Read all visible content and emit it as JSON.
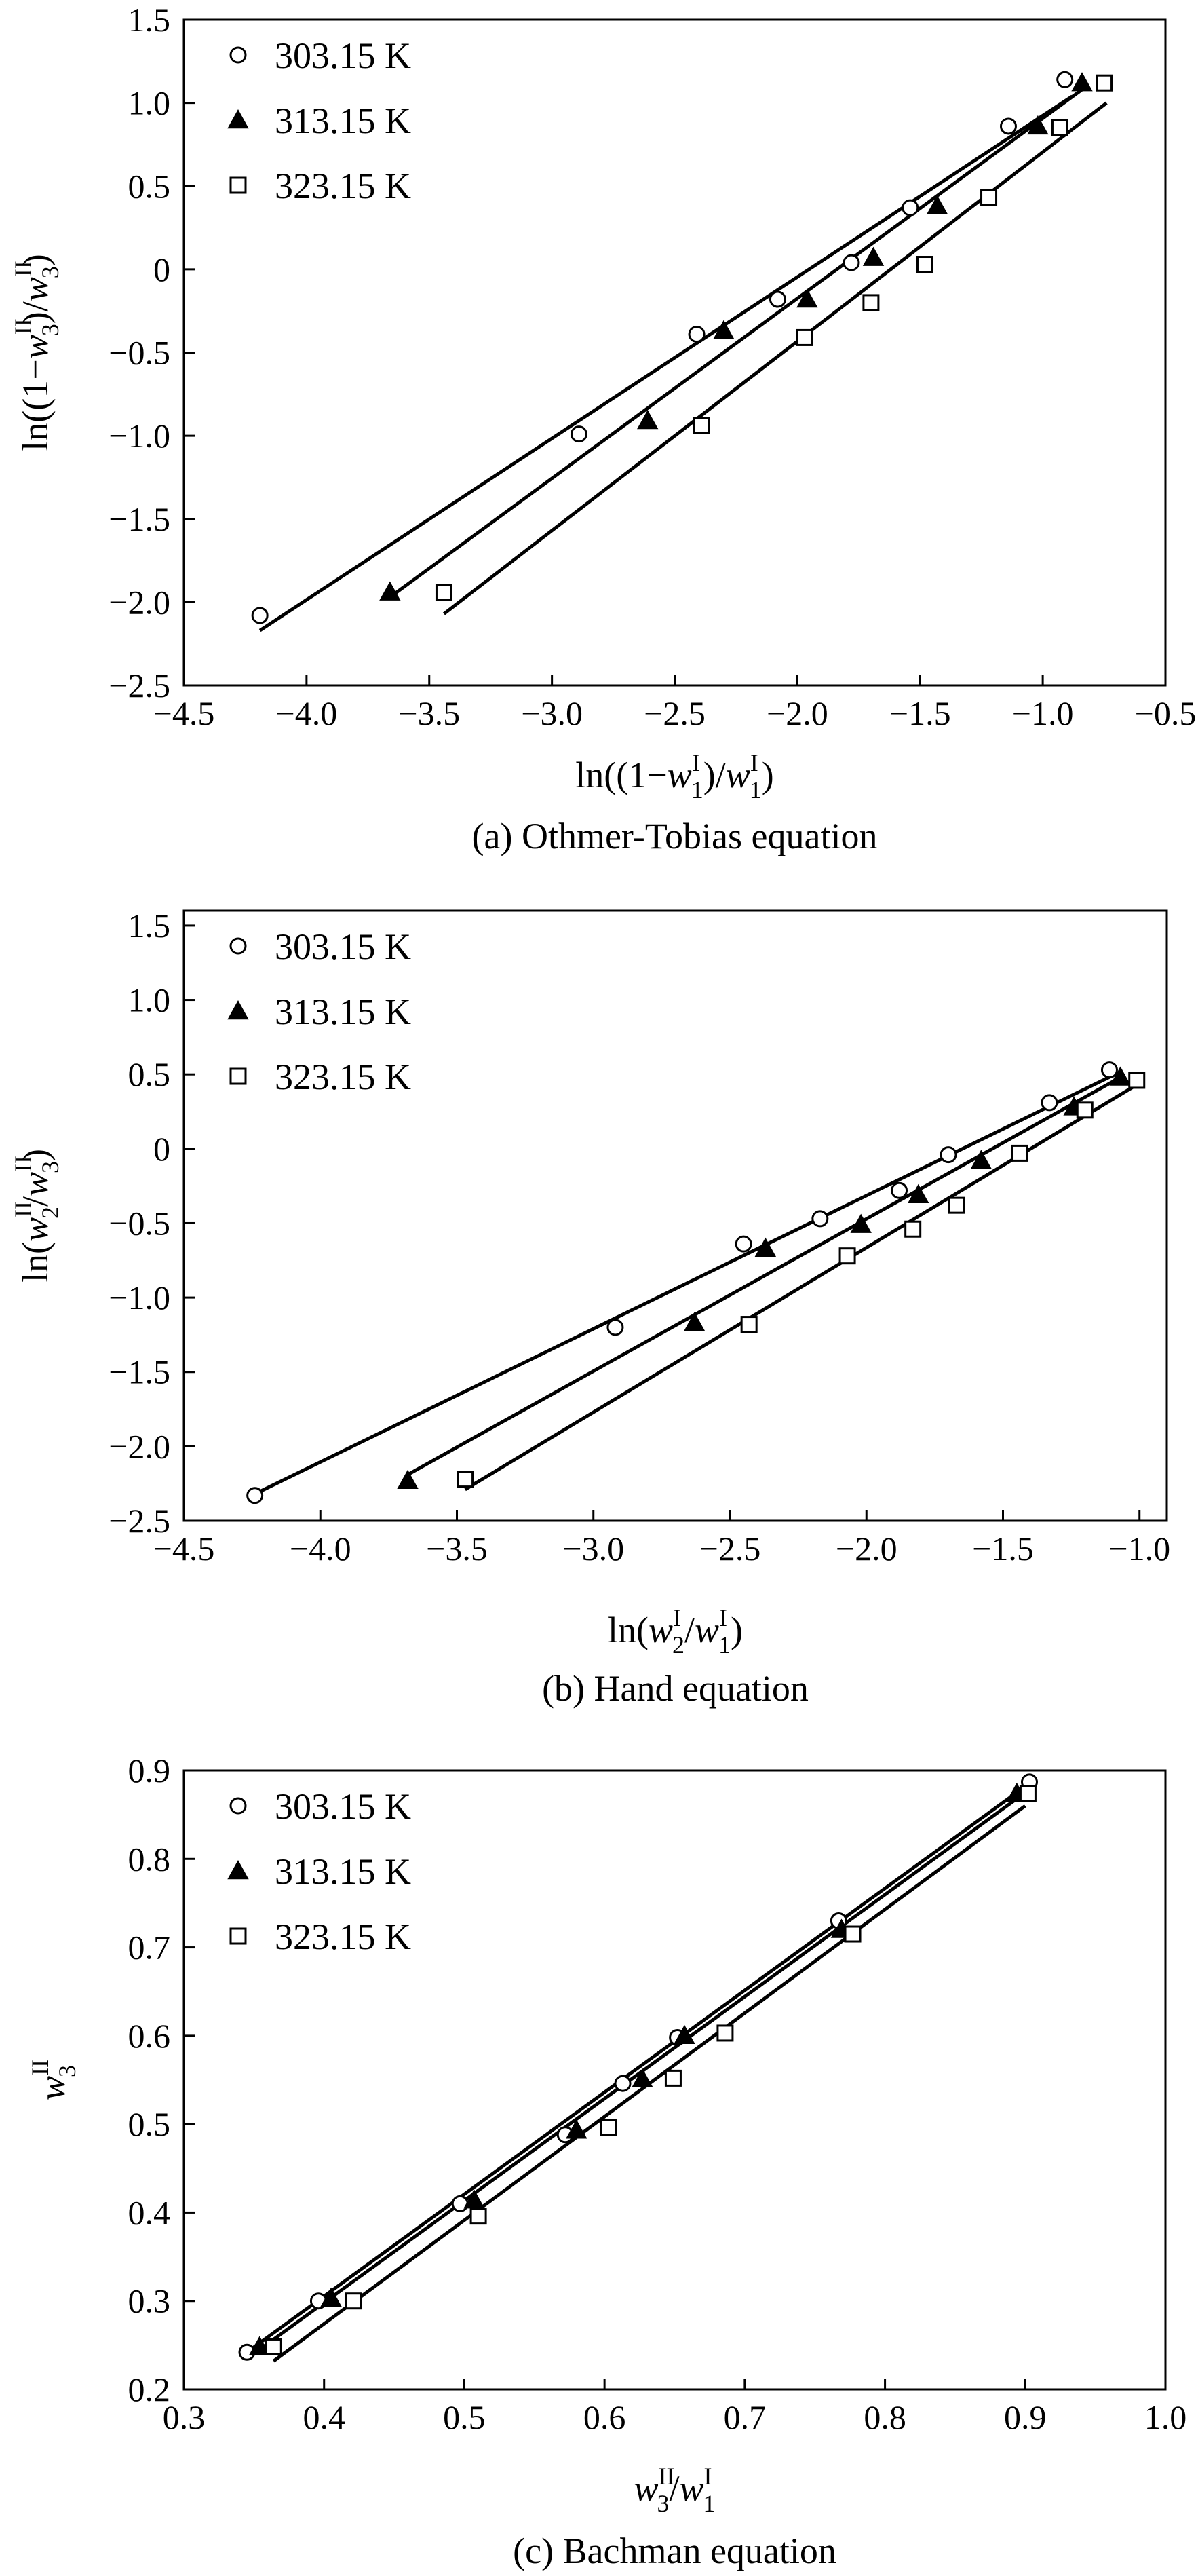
{
  "chart_data": [
    {
      "type": "scatter",
      "caption": "(a) Othmer-Tobias equation",
      "xlabel_parts": [
        "ln((1−",
        "w",
        "I",
        "1",
        ")/",
        "w",
        "I",
        "1",
        ")"
      ],
      "ylabel_parts": [
        "ln((1−",
        "w",
        "II",
        "3",
        ")/",
        "w",
        "II",
        "3",
        ")"
      ],
      "xlim": [
        -4.5,
        -0.5
      ],
      "ylim": [
        -2.5,
        1.5
      ],
      "xticks": [
        -4.5,
        -4.0,
        -3.5,
        -3.0,
        -2.5,
        -2.0,
        -1.5,
        -1.0,
        -0.5
      ],
      "xtick_labels": [
        "−4.5",
        "−4.0",
        "−3.5",
        "−3.0",
        "−2.5",
        "−2.0",
        "−1.5",
        "−1.0",
        "−0.5"
      ],
      "yticks": [
        -2.5,
        -2.0,
        -1.5,
        -1.0,
        -0.5,
        0,
        0.5,
        1.0,
        1.5
      ],
      "ytick_labels": [
        "−2.5",
        "−2.0",
        "−1.5",
        "−1.0",
        "−0.5",
        "0",
        "0.5",
        "1.0",
        "1.5"
      ],
      "grid": false,
      "legend": "top-left",
      "series": [
        {
          "name": "303.15 K",
          "marker": "circle",
          "x": [
            -4.19,
            -2.89,
            -2.41,
            -2.08,
            -1.78,
            -1.54,
            -1.14,
            -0.91
          ],
          "y": [
            -2.08,
            -0.99,
            -0.39,
            -0.18,
            0.04,
            0.37,
            0.86,
            1.14
          ],
          "fit": [
            [
              -4.19,
              -2.17
            ],
            [
              -0.88,
              1.04
            ]
          ]
        },
        {
          "name": "313.15 K",
          "marker": "triangle",
          "x": [
            -3.66,
            -2.61,
            -2.3,
            -1.96,
            -1.69,
            -1.43,
            -1.02,
            -0.84
          ],
          "y": [
            -1.94,
            -0.91,
            -0.37,
            -0.18,
            0.07,
            0.38,
            0.86,
            1.12
          ],
          "fit": [
            [
              -3.66,
              -1.97
            ],
            [
              -0.84,
              1.08
            ]
          ]
        },
        {
          "name": "323.15 K",
          "marker": "square",
          "x": [
            -3.44,
            -2.39,
            -1.97,
            -1.7,
            -1.48,
            -1.22,
            -0.93,
            -0.75
          ],
          "y": [
            -1.94,
            -0.94,
            -0.41,
            -0.2,
            0.03,
            0.43,
            0.85,
            1.12
          ],
          "fit": [
            [
              -3.44,
              -2.07
            ],
            [
              -0.74,
              1.0
            ]
          ]
        }
      ]
    },
    {
      "type": "scatter",
      "caption": "(b) Hand equation",
      "xlabel_parts": [
        "ln(",
        "w",
        "I",
        "2",
        "/",
        "w",
        "I",
        "1",
        ")"
      ],
      "ylabel_parts": [
        "ln(",
        "w",
        "II",
        "2",
        "/",
        "w",
        "II",
        "3",
        ")"
      ],
      "xlim": [
        -4.5,
        -0.9
      ],
      "ylim": [
        -2.5,
        1.6
      ],
      "xticks": [
        -4.5,
        -4.0,
        -3.5,
        -3.0,
        -2.5,
        -2.0,
        -1.5,
        -1.0
      ],
      "xtick_labels": [
        "−4.5",
        "−4.0",
        "−3.5",
        "−3.0",
        "−2.5",
        "−2.0",
        "−1.5",
        "−1.0"
      ],
      "yticks": [
        -2.5,
        -2.0,
        -1.5,
        -1.0,
        -0.5,
        0,
        0.5,
        1.0,
        1.5
      ],
      "ytick_labels": [
        "−2.5",
        "−2.0",
        "−1.5",
        "−1.0",
        "−0.5",
        "0",
        "0.5",
        "1.0",
        "1.5"
      ],
      "grid": false,
      "legend": "top-left",
      "series": [
        {
          "name": "303.15 K",
          "marker": "circle",
          "x": [
            -4.24,
            -2.92,
            -2.45,
            -2.17,
            -1.88,
            -1.7,
            -1.33,
            -1.11
          ],
          "y": [
            -2.33,
            -1.2,
            -0.64,
            -0.47,
            -0.28,
            -0.04,
            0.31,
            0.53
          ],
          "fit": [
            [
              -4.24,
              -2.32
            ],
            [
              -1.09,
              0.5
            ]
          ]
        },
        {
          "name": "313.15 K",
          "marker": "triangle",
          "x": [
            -3.68,
            -2.63,
            -2.37,
            -2.02,
            -1.81,
            -1.58,
            -1.24,
            -1.07
          ],
          "y": [
            -2.23,
            -1.17,
            -0.67,
            -0.51,
            -0.31,
            -0.08,
            0.28,
            0.48
          ],
          "fit": [
            [
              -3.68,
              -2.19
            ],
            [
              -1.06,
              0.49
            ]
          ]
        },
        {
          "name": "323.15 K",
          "marker": "square",
          "x": [
            -3.47,
            -2.43,
            -2.07,
            -1.83,
            -1.67,
            -1.44,
            -1.2,
            -1.01
          ],
          "y": [
            -2.22,
            -1.18,
            -0.72,
            -0.54,
            -0.38,
            -0.03,
            0.26,
            0.46
          ],
          "fit": [
            [
              -3.47,
              -2.29
            ],
            [
              -1.01,
              0.43
            ]
          ]
        }
      ]
    },
    {
      "type": "scatter",
      "caption": "(c) Bachman equation",
      "xlabel_parts": [
        "",
        "w",
        "II",
        "3",
        "/",
        "w",
        "I",
        "1",
        ""
      ],
      "ylabel_parts": [
        "",
        "w",
        "II",
        "3",
        ""
      ],
      "xlim": [
        0.3,
        1.0
      ],
      "ylim": [
        0.2,
        0.9
      ],
      "xticks": [
        0.3,
        0.4,
        0.5,
        0.6,
        0.7,
        0.8,
        0.9,
        1.0
      ],
      "xtick_labels": [
        "0.3",
        "0.4",
        "0.5",
        "0.6",
        "0.7",
        "0.8",
        "0.9",
        "1.0"
      ],
      "yticks": [
        0.2,
        0.3,
        0.4,
        0.5,
        0.6,
        0.7,
        0.8,
        0.9
      ],
      "ytick_labels": [
        "0.2",
        "0.3",
        "0.4",
        "0.5",
        "0.6",
        "0.7",
        "0.8",
        "0.9"
      ],
      "grid": false,
      "legend": "top-left",
      "series": [
        {
          "name": "303.15 K",
          "marker": "circle",
          "x": [
            0.345,
            0.396,
            0.497,
            0.572,
            0.613,
            0.652,
            0.767,
            0.903
          ],
          "y": [
            0.242,
            0.3,
            0.41,
            0.488,
            0.546,
            0.598,
            0.73,
            0.887
          ],
          "fit": [
            [
              0.345,
              0.242
            ],
            [
              0.9,
              0.882
            ]
          ]
        },
        {
          "name": "313.15 K",
          "marker": "triangle",
          "x": [
            0.354,
            0.405,
            0.507,
            0.58,
            0.627,
            0.657,
            0.769,
            0.894
          ],
          "y": [
            0.248,
            0.303,
            0.414,
            0.493,
            0.551,
            0.6,
            0.72,
            0.874
          ],
          "fit": [
            [
              0.354,
              0.245
            ],
            [
              0.9,
              0.875
            ]
          ]
        },
        {
          "name": "323.15 K",
          "marker": "square",
          "x": [
            0.364,
            0.421,
            0.51,
            0.603,
            0.649,
            0.686,
            0.777,
            0.902
          ],
          "y": [
            0.248,
            0.3,
            0.396,
            0.496,
            0.552,
            0.603,
            0.715,
            0.874
          ],
          "fit": [
            [
              0.364,
              0.232
            ],
            [
              0.9,
              0.86
            ]
          ]
        }
      ]
    }
  ]
}
